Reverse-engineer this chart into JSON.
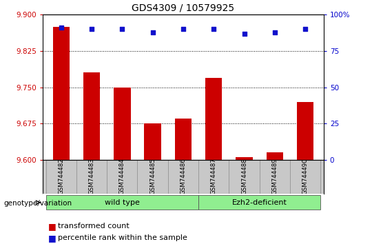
{
  "title": "GDS4309 / 10579925",
  "samples": [
    "GSM744482",
    "GSM744483",
    "GSM744484",
    "GSM744485",
    "GSM744486",
    "GSM744487",
    "GSM744488",
    "GSM744489",
    "GSM744490"
  ],
  "bar_values": [
    9.875,
    9.78,
    9.75,
    9.675,
    9.685,
    9.77,
    9.605,
    9.615,
    9.72
  ],
  "percentile_values": [
    91,
    90,
    90,
    88,
    90,
    90,
    87,
    88,
    90
  ],
  "ylim_left": [
    9.6,
    9.9
  ],
  "ylim_right": [
    0,
    100
  ],
  "yticks_left": [
    9.6,
    9.675,
    9.75,
    9.825,
    9.9
  ],
  "yticks_right": [
    0,
    25,
    50,
    75,
    100
  ],
  "bar_color": "#cc0000",
  "dot_color": "#1111cc",
  "bg_color": "#ffffff",
  "plot_bg_color": "#ffffff",
  "group1_label": "wild type",
  "group2_label": "Ezh2-deficient",
  "group1_indices": [
    0,
    1,
    2,
    3,
    4
  ],
  "group2_indices": [
    5,
    6,
    7,
    8
  ],
  "group_color": "#90EE90",
  "xtick_bg_color": "#c8c8c8",
  "genotype_label": "genotype/variation",
  "legend_bar_label": "transformed count",
  "legend_dot_label": "percentile rank within the sample",
  "left_tick_color": "#cc0000",
  "right_tick_color": "#0000cc",
  "title_fontsize": 10,
  "tick_fontsize": 7.5,
  "label_fontsize": 8,
  "bar_width": 0.55
}
